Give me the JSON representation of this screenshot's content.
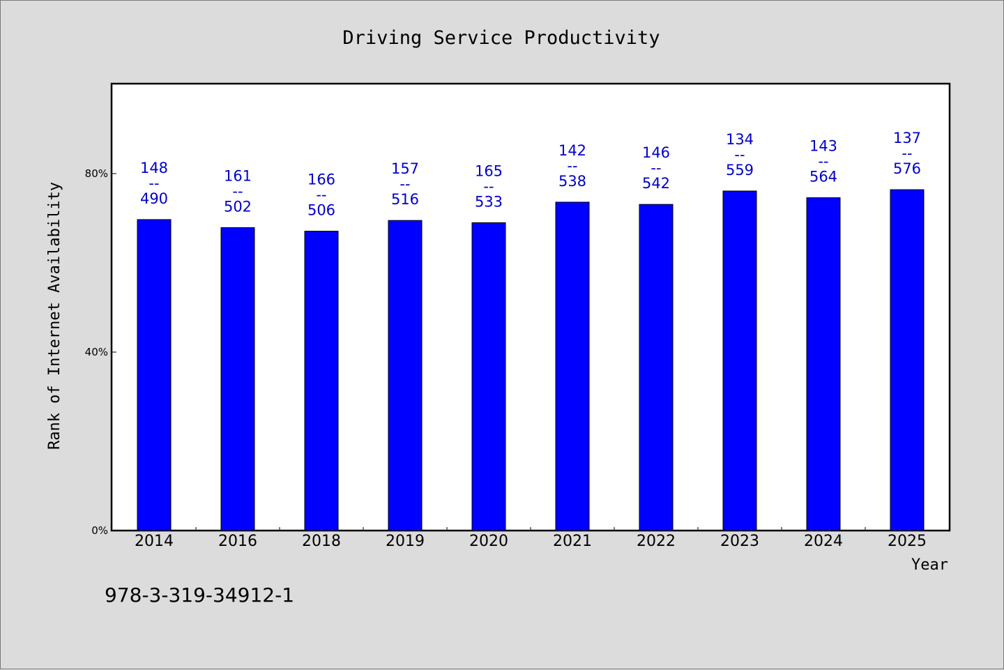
{
  "chart_data": {
    "type": "bar",
    "title": "Driving Service Productivity",
    "xlabel": "Year",
    "ylabel": "Rank of Internet Availability",
    "categories": [
      "2014",
      "2016",
      "2018",
      "2019",
      "2020",
      "2021",
      "2022",
      "2023",
      "2024",
      "2025"
    ],
    "values": [
      69.7,
      67.9,
      67.1,
      69.5,
      69.0,
      73.6,
      73.1,
      76.1,
      74.6,
      76.4
    ],
    "value_unit": "%",
    "data_labels": [
      [
        "148",
        "--",
        "490"
      ],
      [
        "161",
        "--",
        "502"
      ],
      [
        "166",
        "--",
        "506"
      ],
      [
        "157",
        "--",
        "516"
      ],
      [
        "165",
        "--",
        "533"
      ],
      [
        "142",
        "--",
        "538"
      ],
      [
        "146",
        "--",
        "542"
      ],
      [
        "134",
        "--",
        "559"
      ],
      [
        "143",
        "--",
        "564"
      ],
      [
        "137",
        "--",
        "576"
      ]
    ],
    "ylim": [
      0,
      100
    ],
    "yticks": [
      0,
      40,
      80
    ],
    "ytick_labels": [
      "0%",
      "40%",
      "80%"
    ],
    "grid": false,
    "colors": {
      "bar": "#0000ff",
      "data_label": "#0000cc",
      "plot_background": "#ffffff",
      "page_background": "#dcdcdc"
    }
  },
  "footer": {
    "text": "978-3-319-34912-1"
  }
}
